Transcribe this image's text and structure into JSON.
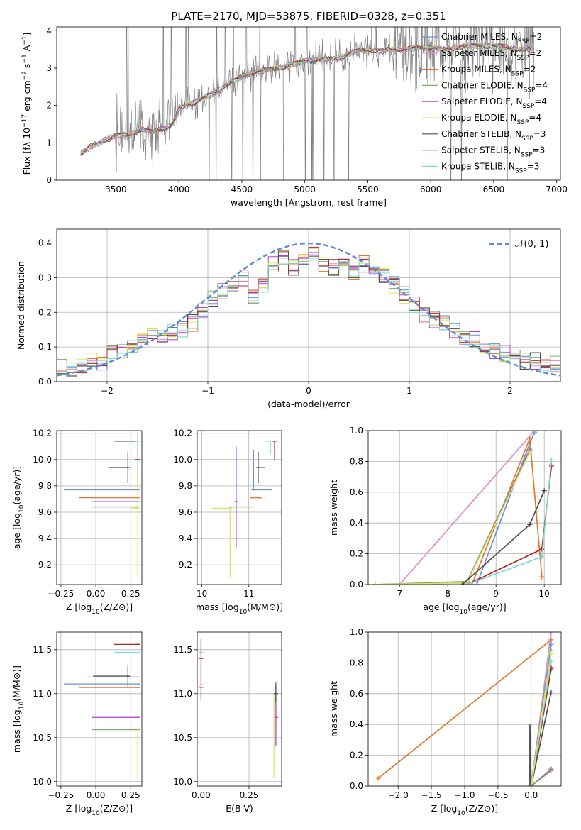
{
  "figure_title": "PLATE=2170, MJD=53875, FIBERID=0328, z=0.351",
  "chart_data": [
    {
      "id": "spectrum",
      "type": "line",
      "xlabel": "wavelength [Angstrom, rest frame]",
      "ylabel": "Flux [f_λ 10^-17 erg cm^-2 s^-1 A^-1]",
      "xlim": [
        3030,
        7030
      ],
      "ylim": [
        0,
        4.1
      ],
      "xticks": [
        3500,
        4000,
        4500,
        5000,
        5500,
        6000,
        6500,
        7000
      ],
      "yticks": [
        0,
        1,
        2,
        3,
        4
      ],
      "grid": false,
      "legend_placement": "upper-right",
      "legend": [
        {
          "name": "Chabrier MILES, N_SSP=2",
          "color": "#6a8fd8"
        },
        {
          "name": "Salpeter MILES, N_SSP=2",
          "color": "#e38bc7"
        },
        {
          "name": "Kroupa MILES, N_SSP=2",
          "color": "#e3772b"
        },
        {
          "name": "Chabrier ELODIE, N_SSP=4",
          "color": "#7fb069"
        },
        {
          "name": "Salpeter ELODIE, N_SSP=4",
          "color": "#b33fd2"
        },
        {
          "name": "Kroupa ELODIE, N_SSP=4",
          "color": "#d8e86a"
        },
        {
          "name": "Chabrier STELIB, N_SSP=3",
          "color": "#4f4f4f"
        },
        {
          "name": "Salpeter STELIB, N_SSP=3",
          "color": "#b22222"
        },
        {
          "name": "Kroupa STELIB, N_SSP=3",
          "color": "#7fd8d8"
        }
      ],
      "data_series": {
        "name": "data",
        "color": "#808080"
      },
      "model_x": [
        3220,
        3300,
        3400,
        3500,
        3600,
        3700,
        3800,
        3900,
        3950,
        4000,
        4100,
        4200,
        4300,
        4400,
        4500,
        4600,
        4700,
        4800,
        4900,
        5000,
        5100,
        5200,
        5300,
        5400,
        5500,
        5600,
        5700,
        5800,
        5900,
        6000,
        6100,
        6200,
        6300,
        6400,
        6500,
        6600,
        6700,
        6800
      ],
      "model_y": [
        0.7,
        0.9,
        1.05,
        1.2,
        1.2,
        1.35,
        1.3,
        1.4,
        1.5,
        1.9,
        2.05,
        2.2,
        2.35,
        2.6,
        2.75,
        2.9,
        2.95,
        3.0,
        3.1,
        3.2,
        3.2,
        3.25,
        3.3,
        3.45,
        3.5,
        3.45,
        3.5,
        3.5,
        3.55,
        3.55,
        3.5,
        3.55,
        3.6,
        3.6,
        3.6,
        3.55,
        3.5,
        3.5
      ]
    },
    {
      "id": "residuals",
      "type": "histogram",
      "xlabel": "(data-model)/error",
      "ylabel": "Normed distribution",
      "xlim": [
        -2.5,
        2.5
      ],
      "ylim": [
        0,
        0.44
      ],
      "xticks": [
        -2,
        -1,
        0,
        1,
        2
      ],
      "yticks": [
        0.0,
        0.1,
        0.2,
        0.3,
        0.4
      ],
      "grid": true,
      "legend_placement": "upper-right",
      "legend": [
        {
          "name": "𝒩(0, 1)",
          "color": "#5b8bd6",
          "style": "dashed"
        }
      ],
      "bins": [
        -2.5,
        -2.4,
        -2.3,
        -2.2,
        -2.1,
        -2.0,
        -1.9,
        -1.8,
        -1.7,
        -1.6,
        -1.5,
        -1.4,
        -1.3,
        -1.2,
        -1.1,
        -1.0,
        -0.9,
        -0.8,
        -0.7,
        -0.6,
        -0.5,
        -0.4,
        -0.3,
        -0.2,
        -0.1,
        0.0,
        0.1,
        0.2,
        0.3,
        0.4,
        0.5,
        0.6,
        0.7,
        0.8,
        0.9,
        1.0,
        1.1,
        1.2,
        1.3,
        1.4,
        1.5,
        1.6,
        1.7,
        1.8,
        1.9,
        2.0,
        2.1,
        2.2,
        2.3,
        2.4,
        2.5
      ],
      "base_values": [
        0.04,
        0.035,
        0.05,
        0.06,
        0.055,
        0.08,
        0.09,
        0.1,
        0.12,
        0.13,
        0.13,
        0.14,
        0.15,
        0.17,
        0.2,
        0.24,
        0.26,
        0.27,
        0.3,
        0.25,
        0.28,
        0.34,
        0.36,
        0.33,
        0.35,
        0.37,
        0.34,
        0.33,
        0.34,
        0.32,
        0.34,
        0.33,
        0.31,
        0.28,
        0.25,
        0.22,
        0.19,
        0.18,
        0.17,
        0.15,
        0.13,
        0.12,
        0.1,
        0.09,
        0.08,
        0.07,
        0.06,
        0.06,
        0.05,
        0.05
      ]
    },
    {
      "id": "age_vs_Z",
      "type": "errorbar",
      "xlabel": "Z [log10(Z/Z⊙)]",
      "ylabel": "age [log10(age/yr)]",
      "xlim": [
        -0.28,
        0.33
      ],
      "ylim": [
        9.05,
        10.22
      ],
      "xticks": [
        -0.25,
        0.0,
        0.25
      ],
      "yticks": [
        9.2,
        9.4,
        9.6,
        9.8,
        10.0,
        10.2
      ],
      "grid": true,
      "points": [
        {
          "series": 0,
          "x": 0.3,
          "y": 9.77,
          "xerr": [
            0.53,
            0.0
          ],
          "yerr": [
            0.0,
            0.0
          ]
        },
        {
          "series": 2,
          "x": 0.3,
          "y": 9.71,
          "xerr": [
            0.42,
            0.0
          ],
          "yerr": [
            0.0,
            0.4
          ]
        },
        {
          "series": 3,
          "x": 0.3,
          "y": 9.64,
          "xerr": [
            0.33,
            0.0
          ],
          "yerr": [
            0.0,
            0.0
          ]
        },
        {
          "series": 4,
          "x": 0.3,
          "y": 9.68,
          "xerr": [
            0.33,
            0.0
          ],
          "yerr": [
            0.0,
            0.0
          ]
        },
        {
          "series": 5,
          "x": 0.3,
          "y": 9.63,
          "xerr": [
            0.05,
            0.0
          ],
          "yerr": [
            0.53,
            0.58
          ]
        },
        {
          "series": 6,
          "x": 0.23,
          "y": 9.94,
          "xerr": [
            0.14,
            0.0
          ],
          "yerr": [
            0.12,
            0.12
          ]
        },
        {
          "series": 6,
          "x": 0.3,
          "y": 10.14,
          "xerr": [
            0.17,
            0.0
          ],
          "yerr": [
            0.0,
            0.0
          ]
        },
        {
          "series": 7,
          "x": 0.3,
          "y": 10.0,
          "xerr": [
            0.0,
            0.0
          ],
          "yerr": [
            0.0,
            0.0
          ]
        },
        {
          "series": 8,
          "x": 0.3,
          "y": 10.14,
          "xerr": [
            0.0,
            0.0
          ],
          "yerr": [
            0.2,
            0.05
          ]
        }
      ]
    },
    {
      "id": "age_vs_mass",
      "type": "errorbar",
      "xlabel": "mass [log10(M/M⊙)]",
      "ylabel": "",
      "xlim": [
        9.9,
        11.7
      ],
      "ylim": [
        9.05,
        10.22
      ],
      "xticks": [
        10,
        11
      ],
      "yticks": [
        9.2,
        9.4,
        9.6,
        9.8,
        10.0,
        10.2
      ],
      "grid": true,
      "points": [
        {
          "series": 0,
          "x": 11.1,
          "y": 9.77,
          "xerr": [
            0.0,
            0.4
          ],
          "yerr": [
            0.0,
            0.3
          ]
        },
        {
          "series": 1,
          "x": 11.2,
          "y": 9.7,
          "xerr": [
            0.0,
            0.2
          ],
          "yerr": [
            0.0,
            0.0
          ]
        },
        {
          "series": 2,
          "x": 11.07,
          "y": 9.71,
          "xerr": [
            0.0,
            0.2
          ],
          "yerr": [
            0.0,
            0.0
          ]
        },
        {
          "series": 3,
          "x": 10.6,
          "y": 9.64,
          "xerr": [
            0.0,
            0.5
          ],
          "yerr": [
            0.0,
            0.0
          ]
        },
        {
          "series": 4,
          "x": 10.73,
          "y": 9.68,
          "xerr": [
            0.0,
            0.0
          ],
          "yerr": [
            0.35,
            0.42
          ]
        },
        {
          "series": 5,
          "x": 10.6,
          "y": 9.63,
          "xerr": [
            0.4,
            0.0
          ],
          "yerr": [
            0.53,
            0.0
          ]
        },
        {
          "series": 6,
          "x": 11.2,
          "y": 9.94,
          "xerr": [
            0.0,
            0.15
          ],
          "yerr": [
            0.12,
            0.12
          ]
        },
        {
          "series": 7,
          "x": 11.55,
          "y": 10.14,
          "xerr": [
            0.1,
            0.0
          ],
          "yerr": [
            0.14,
            0.0
          ]
        },
        {
          "series": 8,
          "x": 11.46,
          "y": 10.14,
          "xerr": [
            0.1,
            0.0
          ],
          "yerr": [
            0.1,
            0.0
          ]
        }
      ]
    },
    {
      "id": "weight_vs_age",
      "type": "line",
      "xlabel": "age [log10(age/yr)]",
      "ylabel": "mass weight",
      "xlim": [
        6.35,
        10.35
      ],
      "ylim": [
        0,
        1
      ],
      "xticks": [
        6,
        7,
        8,
        9,
        10
      ],
      "yticks": [
        0.0,
        0.2,
        0.4,
        0.6,
        0.8,
        1.0
      ],
      "grid": true,
      "series": [
        {
          "series": 0,
          "x": [
            8.6,
            9.7,
            9.8
          ],
          "y": [
            0.0,
            0.92,
            0.99
          ]
        },
        {
          "series": 1,
          "x": [
            7.0,
            9.8
          ],
          "y": [
            0.0,
            1.0
          ]
        },
        {
          "series": 2,
          "x": [
            8.5,
            9.7,
            9.95
          ],
          "y": [
            0.0,
            0.95,
            0.05
          ]
        },
        {
          "series": 3,
          "x": [
            6.5,
            8.4,
            9.7
          ],
          "y": [
            0.0,
            0.02,
            0.88
          ]
        },
        {
          "series": 4,
          "x": [
            6.5,
            8.4,
            9.7
          ],
          "y": [
            0.0,
            0.01,
            0.87
          ]
        },
        {
          "series": 5,
          "x": [
            6.5,
            8.4,
            9.7
          ],
          "y": [
            0.0,
            0.01,
            0.86
          ]
        },
        {
          "series": 6,
          "x": [
            8.3,
            9.7,
            10.0
          ],
          "y": [
            0.0,
            0.39,
            0.61
          ]
        },
        {
          "series": 7,
          "x": [
            8.4,
            9.95,
            10.15
          ],
          "y": [
            0.0,
            0.23,
            0.77
          ]
        },
        {
          "series": 8,
          "x": [
            8.4,
            9.95,
            10.15
          ],
          "y": [
            0.0,
            0.18,
            0.81
          ]
        }
      ]
    },
    {
      "id": "mass_vs_Z",
      "type": "errorbar",
      "xlabel": "Z [log10(Z/Z⊙)]",
      "ylabel": "mass [log10(M/M⊙)]",
      "xlim": [
        -0.28,
        0.33
      ],
      "ylim": [
        9.95,
        11.7
      ],
      "xticks": [
        -0.25,
        0.0,
        0.25
      ],
      "yticks": [
        10.0,
        10.5,
        11.0,
        11.5
      ],
      "grid": true,
      "points": [
        {
          "series": 0,
          "x": 0.3,
          "y": 11.11,
          "xerr": [
            0.53,
            0.0
          ],
          "yerr": [
            0.0,
            0.0
          ]
        },
        {
          "series": 1,
          "x": 0.3,
          "y": 11.19,
          "xerr": [
            0.36,
            0.0
          ],
          "yerr": [
            0.0,
            0.0
          ]
        },
        {
          "series": 2,
          "x": 0.3,
          "y": 11.07,
          "xerr": [
            0.42,
            0.0
          ],
          "yerr": [
            0.0,
            0.0
          ]
        },
        {
          "series": 3,
          "x": 0.3,
          "y": 10.59,
          "xerr": [
            0.33,
            0.0
          ],
          "yerr": [
            0.0,
            0.0
          ]
        },
        {
          "series": 4,
          "x": 0.3,
          "y": 10.73,
          "xerr": [
            0.33,
            0.0
          ],
          "yerr": [
            0.0,
            0.0
          ]
        },
        {
          "series": 5,
          "x": 0.3,
          "y": 10.6,
          "xerr": [
            0.05,
            0.0
          ],
          "yerr": [
            0.57,
            0.0
          ]
        },
        {
          "series": 6,
          "x": 0.23,
          "y": 11.2,
          "xerr": [
            0.25,
            0.0
          ],
          "yerr": [
            0.12,
            0.12
          ]
        },
        {
          "series": 7,
          "x": 0.3,
          "y": 11.56,
          "xerr": [
            0.17,
            0.0
          ],
          "yerr": [
            0.0,
            0.0
          ]
        },
        {
          "series": 8,
          "x": 0.3,
          "y": 11.47,
          "xerr": [
            0.17,
            0.0
          ],
          "yerr": [
            0.0,
            0.0
          ]
        }
      ]
    },
    {
      "id": "mass_vs_EBV",
      "type": "errorbar",
      "xlabel": "E(B-V)",
      "ylabel": "",
      "xlim": [
        -0.02,
        0.42
      ],
      "ylim": [
        9.95,
        11.7
      ],
      "xticks": [
        0.0,
        0.25
      ],
      "yticks": [
        10.0,
        10.5,
        11.0,
        11.5
      ],
      "grid": true,
      "points": [
        {
          "series": 0,
          "x": 0.0,
          "y": 11.1,
          "xerr": [
            0.0,
            0.0
          ],
          "yerr": [
            0.18,
            0.0
          ]
        },
        {
          "series": 2,
          "x": 0.0,
          "y": 11.07,
          "xerr": [
            0.0,
            0.0
          ],
          "yerr": [
            0.12,
            0.0
          ]
        },
        {
          "series": 7,
          "x": 0.0,
          "y": 11.4,
          "xerr": [
            0.0,
            0.0
          ],
          "yerr": [
            0.3,
            0.22
          ]
        },
        {
          "series": 8,
          "x": 0.0,
          "y": 11.47,
          "xerr": [
            0.0,
            0.0
          ],
          "yerr": [
            0.1,
            0.0
          ]
        },
        {
          "series": 4,
          "x": 0.39,
          "y": 10.73,
          "xerr": [
            0.0,
            0.0
          ],
          "yerr": [
            0.32,
            0.4
          ]
        },
        {
          "series": 5,
          "x": 0.38,
          "y": 10.6,
          "xerr": [
            0.0,
            0.0
          ],
          "yerr": [
            0.55,
            0.4
          ]
        },
        {
          "series": 6,
          "x": 0.39,
          "y": 11.0,
          "xerr": [
            0.0,
            0.0
          ],
          "yerr": [
            0.1,
            0.1
          ]
        }
      ]
    },
    {
      "id": "weight_vs_Z",
      "type": "line",
      "xlabel": "Z [log10(Z/Z⊙)]",
      "ylabel": "mass weight",
      "xlim": [
        -2.45,
        0.45
      ],
      "ylim": [
        0,
        1
      ],
      "xticks": [
        -2.0,
        -1.5,
        -1.0,
        -0.5,
        0.0
      ],
      "yticks": [
        0.0,
        0.2,
        0.4,
        0.6,
        0.8,
        1.0
      ],
      "grid": true,
      "series": [
        {
          "series": 2,
          "x": [
            -2.3,
            0.3
          ],
          "y": [
            0.05,
            0.95
          ]
        },
        {
          "series": 6,
          "x": [
            -0.02,
            -0.02,
            0.0,
            0.3
          ],
          "y": [
            0.0,
            0.39,
            0.0,
            0.76
          ]
        },
        {
          "series": 6,
          "x": [
            0.0,
            0.3
          ],
          "y": [
            0.0,
            0.61
          ]
        },
        {
          "series": 1,
          "x": [
            0.0,
            0.3
          ],
          "y": [
            0.0,
            1.0
          ]
        },
        {
          "series": 0,
          "x": [
            0.0,
            0.3
          ],
          "y": [
            0.0,
            0.92
          ]
        },
        {
          "series": 7,
          "x": [
            0.0,
            0.3
          ],
          "y": [
            0.0,
            0.77
          ]
        },
        {
          "series": 8,
          "x": [
            0.0,
            0.3
          ],
          "y": [
            0.0,
            0.81
          ]
        },
        {
          "series": 3,
          "x": [
            0.0,
            0.3
          ],
          "y": [
            0.0,
            0.88
          ]
        },
        {
          "series": 5,
          "x": [
            0.0,
            0.3
          ],
          "y": [
            0.0,
            0.86
          ]
        },
        {
          "series": 4,
          "x": [
            0.0,
            0.3
          ],
          "y": [
            0.0,
            0.11
          ]
        },
        {
          "series": 3,
          "x": [
            0.0,
            0.3
          ],
          "y": [
            0.0,
            0.1
          ]
        }
      ]
    }
  ]
}
